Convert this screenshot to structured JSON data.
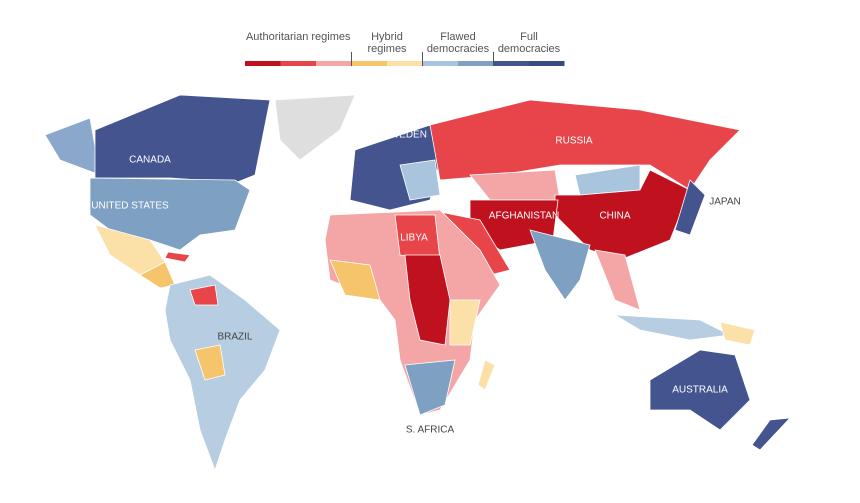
{
  "legend": {
    "groups": [
      {
        "label": "Authoritarian regimes",
        "colors": [
          "#c0111f",
          "#e8454a",
          "#f4a6a6"
        ]
      },
      {
        "label": "Hybrid regimes",
        "colors": [
          "#f6c46a",
          "#fbe0a8"
        ]
      },
      {
        "label": "Flawed democracies",
        "colors": [
          "#a9c4dd",
          "#7ea0c3"
        ]
      },
      {
        "label": "Full democracies",
        "colors": [
          "#43548f",
          "#3a4a86"
        ]
      }
    ]
  },
  "map": {
    "labels": [
      "CANADA",
      "UNITED STATES",
      "BRAZIL",
      "RUSSIA",
      "CHINA",
      "AFGHANISTAN",
      "LIBYA",
      "JAPAN",
      "AUSTRALIA",
      "S. AFRICA",
      "SWEDEN"
    ]
  }
}
